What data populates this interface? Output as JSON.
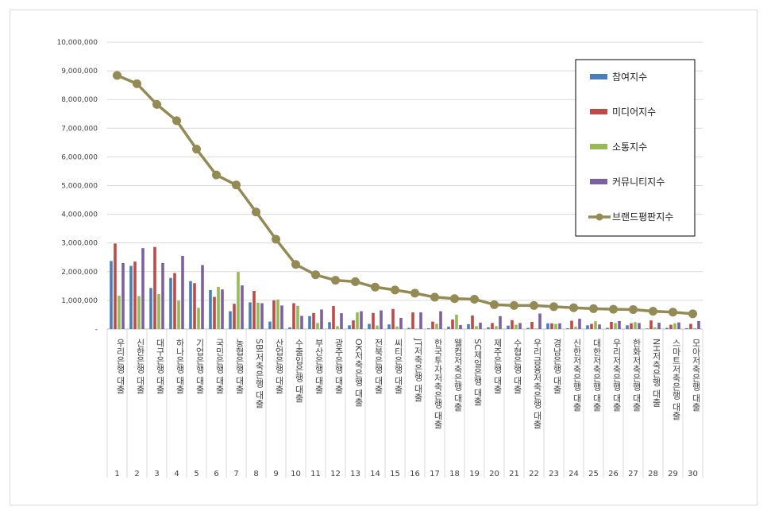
{
  "chart_data": {
    "type": "bar",
    "title": "",
    "xlabel": "",
    "ylabel": "",
    "ylim": [
      0,
      10000000
    ],
    "y_ticks": [
      "-",
      "1,000,000",
      "2,000,000",
      "3,000,000",
      "4,000,000",
      "5,000,000",
      "6,000,000",
      "7,000,000",
      "8,000,000",
      "9,000,000",
      "10,000,000"
    ],
    "grid": true,
    "legend_position": "top-right",
    "rank_labels": [
      "1",
      "2",
      "3",
      "4",
      "5",
      "6",
      "7",
      "8",
      "9",
      "10",
      "11",
      "12",
      "13",
      "14",
      "15",
      "16",
      "17",
      "18",
      "19",
      "20",
      "21",
      "22",
      "23",
      "24",
      "25",
      "26",
      "27",
      "28",
      "29",
      "30"
    ],
    "categories": [
      "우리은행 대출",
      "신한은행 대출",
      "대구은행 대출",
      "하나은행 대출",
      "기업은행 대출",
      "국민은행 대출",
      "농협은행 대출",
      "SBI저축은행 대출",
      "산업은행 대출",
      "수출입은행 대출",
      "부산은행 대출",
      "광주은행 대출",
      "OK저축은행 대출",
      "전북은행 대출",
      "씨티은행 대출",
      "JT저축은행 대출",
      "한국투자저축은행 대출",
      "웰컴저축은행 대출",
      "SC제일은행 대출",
      "제주은행 대출",
      "수협은행 대출",
      "우리금융저축은행 대출",
      "경남은행 대출",
      "신한저축은행 대출",
      "대한저축은행 대출",
      "우리저축은행 대출",
      "한화저축은행 대출",
      "NH저축은행 대출",
      "스마트저축은행 대출",
      "모아저축은행 대출"
    ],
    "series": [
      {
        "name": "참여지수",
        "kind": "bar",
        "color": "#4a7ebb",
        "values": [
          2370000,
          2200000,
          1430000,
          1780000,
          1670000,
          1360000,
          620000,
          930000,
          260000,
          60000,
          450000,
          240000,
          130000,
          180000,
          160000,
          40000,
          30000,
          80000,
          170000,
          60000,
          120000,
          40000,
          200000,
          30000,
          130000,
          40000,
          130000,
          20000,
          40000,
          30000
        ]
      },
      {
        "name": "미디어지수",
        "kind": "bar",
        "color": "#be4b48",
        "values": [
          2980000,
          2350000,
          2860000,
          1950000,
          1600000,
          1120000,
          880000,
          1330000,
          1000000,
          900000,
          560000,
          800000,
          300000,
          560000,
          700000,
          580000,
          260000,
          330000,
          470000,
          210000,
          310000,
          250000,
          200000,
          290000,
          180000,
          250000,
          200000,
          300000,
          150000,
          180000
        ]
      },
      {
        "name": "소통지수",
        "kind": "bar",
        "color": "#98b954",
        "values": [
          1160000,
          1150000,
          1220000,
          990000,
          740000,
          1470000,
          1990000,
          920000,
          1030000,
          810000,
          210000,
          100000,
          580000,
          120000,
          90000,
          20000,
          180000,
          500000,
          100000,
          100000,
          150000,
          20000,
          180000,
          80000,
          270000,
          210000,
          240000,
          60000,
          200000,
          30000
        ]
      },
      {
        "name": "커뮤니티지수",
        "kind": "bar",
        "color": "#7d60a0",
        "values": [
          2300000,
          2820000,
          2300000,
          2550000,
          2230000,
          1380000,
          1520000,
          900000,
          820000,
          460000,
          680000,
          550000,
          620000,
          650000,
          390000,
          580000,
          620000,
          140000,
          220000,
          450000,
          210000,
          540000,
          200000,
          360000,
          160000,
          280000,
          210000,
          220000,
          230000,
          280000
        ]
      },
      {
        "name": "브랜드평판지수",
        "kind": "line",
        "color": "#948a54",
        "values": [
          8840000,
          8550000,
          7830000,
          7260000,
          6270000,
          5370000,
          5020000,
          4080000,
          3130000,
          2250000,
          1890000,
          1700000,
          1650000,
          1460000,
          1360000,
          1250000,
          1110000,
          1060000,
          1040000,
          850000,
          820000,
          820000,
          780000,
          740000,
          710000,
          690000,
          680000,
          620000,
          590000,
          530000
        ]
      }
    ]
  }
}
